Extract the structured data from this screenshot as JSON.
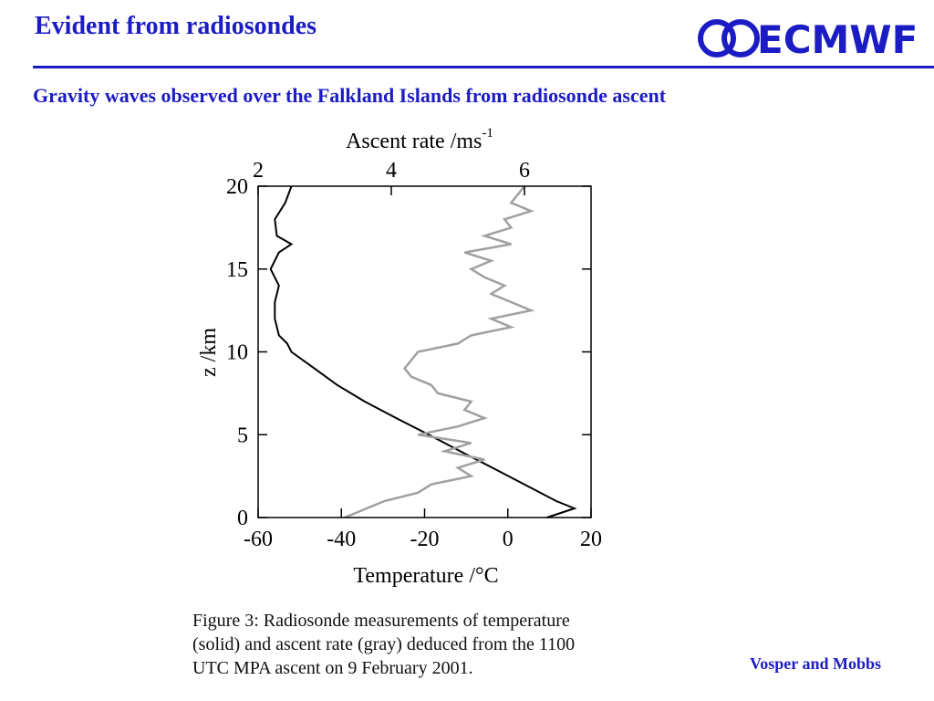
{
  "header": {
    "title": "Evident from radiosondes",
    "logo": "ECMWF"
  },
  "subtitle": "Gravity waves observed over the Falkland Islands from radiosonde ascent",
  "chart_data": {
    "type": "line",
    "xlabel": "Temperature /°C",
    "x2label": {
      "text": "Ascent rate /ms",
      "sup": "-1"
    },
    "ylabel": "z /km",
    "xlim": [
      -60,
      20
    ],
    "xticks": [
      -60,
      -40,
      -20,
      0,
      20
    ],
    "x2lim": [
      2,
      7
    ],
    "x2ticks": [
      2,
      4,
      6
    ],
    "ylim": [
      0,
      20
    ],
    "yticks": [
      0,
      5,
      10,
      15,
      20
    ],
    "series": [
      {
        "color": "#000000",
        "x": [
          9.4,
          16,
          11.6,
          4,
          -3.7,
          -11.4,
          -19,
          -26.8,
          -34.4,
          -41,
          -46.5,
          -52,
          -53,
          -55,
          -56,
          -56,
          -55,
          -57,
          -55,
          -52,
          -55.5,
          -56,
          -53.5,
          -52
        ],
        "values": [
          0,
          0.55,
          1,
          2,
          3,
          4,
          5,
          6,
          7,
          8,
          9,
          10,
          10.5,
          11,
          12,
          13,
          14,
          15,
          16,
          16.5,
          17,
          18,
          19,
          20
        ]
      },
      {
        "color": "#a0a0a0",
        "axis": "x2",
        "x": [
          3.3,
          3.6,
          3.9,
          4.4,
          4.6,
          5.2,
          5.0,
          5.4,
          4.8,
          5.2,
          4.4,
          5.0,
          5.4,
          5.1,
          5.2,
          4.7,
          4.6,
          4.3,
          4.2,
          4.3,
          4.4,
          5.0,
          5.2,
          5.8,
          5.5,
          6.1,
          5.8,
          5.5,
          5.7,
          5.4,
          5.2,
          5.5,
          5.1,
          5.8,
          5.4,
          5.8,
          5.7,
          6.1,
          5.8,
          5.9,
          6.0
        ],
        "values": [
          0,
          0.5,
          1,
          1.5,
          2,
          2.5,
          3,
          3.5,
          4,
          4.5,
          5,
          5.5,
          6,
          6.5,
          7,
          7.5,
          8,
          8.5,
          9,
          9.5,
          10,
          10.5,
          11,
          11.5,
          12,
          12.5,
          13,
          13.5,
          14,
          14.5,
          15,
          15.5,
          16,
          16.5,
          17,
          17.5,
          18,
          18.5,
          19,
          19.5,
          20
        ]
      }
    ]
  },
  "caption": [
    "Figure 3:  Radiosonde measurements of temperature",
    "(solid) and ascent rate (gray) deduced from the 1100",
    "UTC MPA ascent on 9 February 2001."
  ],
  "credit": "Vosper and Mobbs"
}
